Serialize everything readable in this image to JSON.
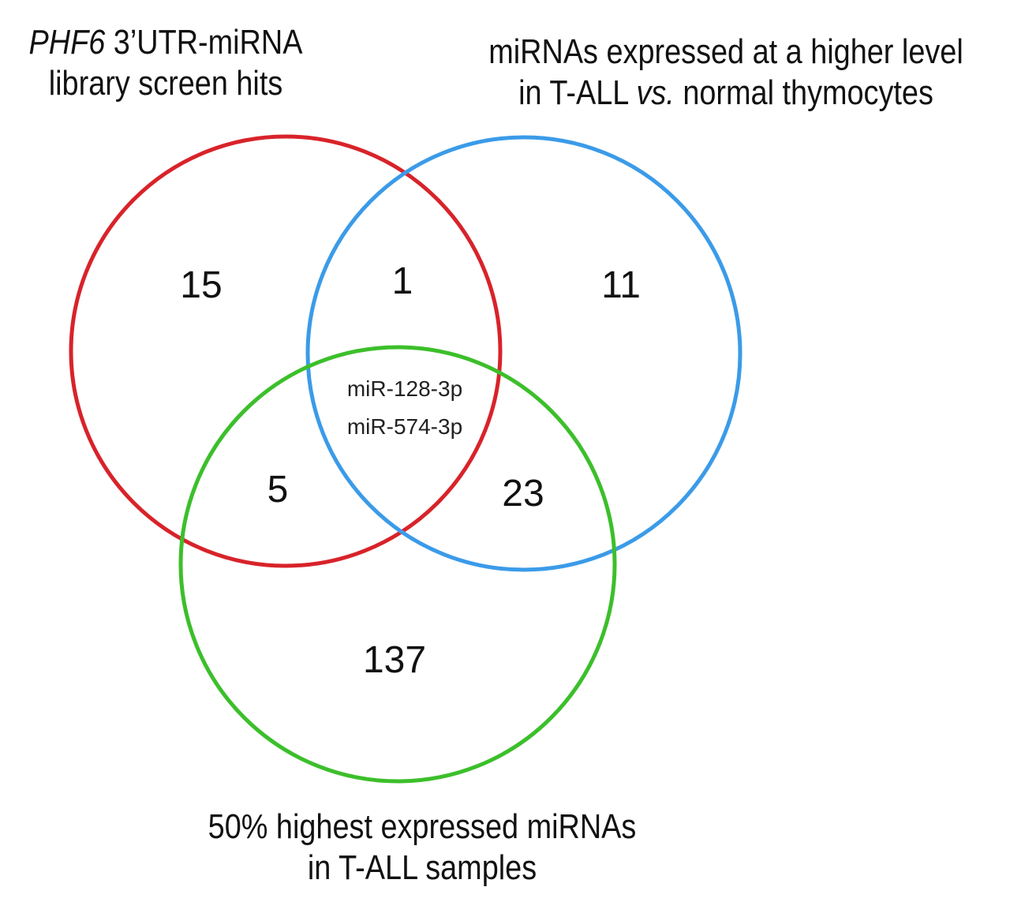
{
  "sets": {
    "a": {
      "label_italic": "PHF6",
      "label_line1_rest": " 3’UTR-miRNA",
      "label_line2": "library screen hits",
      "color": "#d8232a"
    },
    "b": {
      "label_line1": "miRNAs expressed at a higher level",
      "label_line2_pre": "in T-ALL ",
      "label_line2_italic": "vs.",
      "label_line2_post": " normal thymocytes",
      "color": "#3b9be8"
    },
    "c": {
      "label_line1": "50% highest expressed miRNAs",
      "label_line2": "in T-ALL samples",
      "color": "#3cbf2b"
    }
  },
  "regions": {
    "a_only": "15",
    "ab_only": "1",
    "b_only": "11",
    "ac_only": "5",
    "bc_only": "23",
    "c_only": "137",
    "abc": [
      "miR-128-3p",
      "miR-574-3p"
    ]
  }
}
